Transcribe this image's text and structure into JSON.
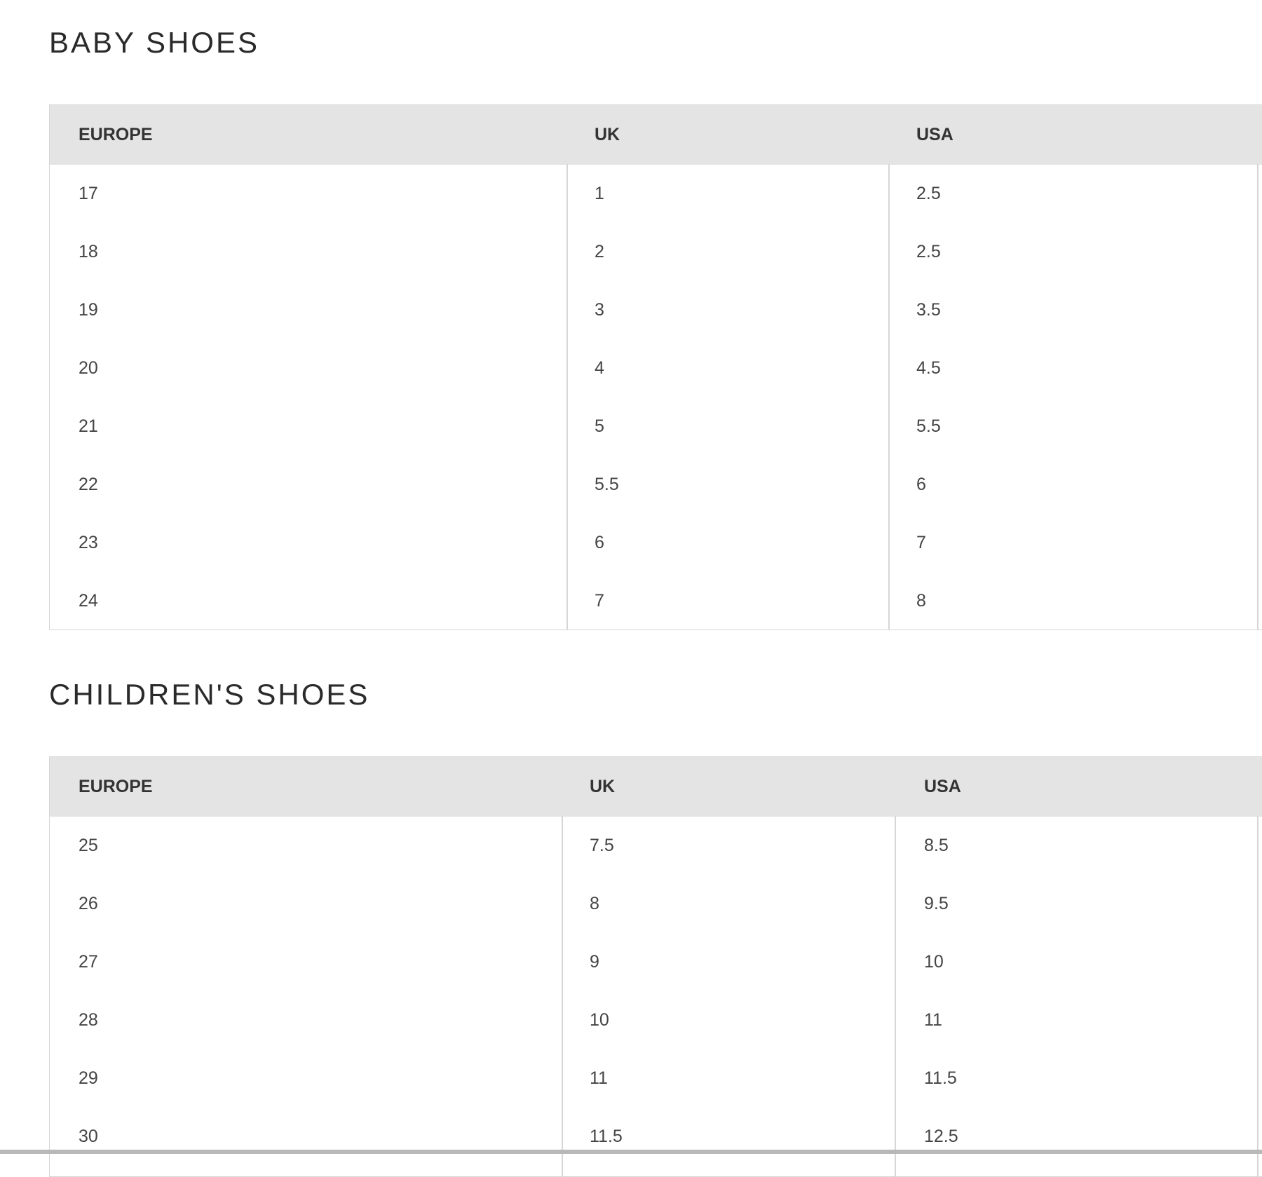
{
  "sections": [
    {
      "title": "BABY SHOES",
      "headers": [
        "EUROPE",
        "UK",
        "USA"
      ],
      "rows": [
        [
          "17",
          "1",
          "2.5"
        ],
        [
          "18",
          "2",
          "2.5"
        ],
        [
          "19",
          "3",
          "3.5"
        ],
        [
          "20",
          "4",
          "4.5"
        ],
        [
          "21",
          "5",
          "5.5"
        ],
        [
          "22",
          "5.5",
          "6"
        ],
        [
          "23",
          "6",
          "7"
        ],
        [
          "24",
          "7",
          "8"
        ]
      ]
    },
    {
      "title": "CHILDREN'S SHOES",
      "headers": [
        "EUROPE",
        "UK",
        "USA"
      ],
      "rows": [
        [
          "25",
          "7.5",
          "8.5"
        ],
        [
          "26",
          "8",
          "9.5"
        ],
        [
          "27",
          "9",
          "10"
        ],
        [
          "28",
          "10",
          "11"
        ],
        [
          "29",
          "11",
          "11.5"
        ],
        [
          "30",
          "11.5",
          "12.5"
        ]
      ]
    }
  ]
}
